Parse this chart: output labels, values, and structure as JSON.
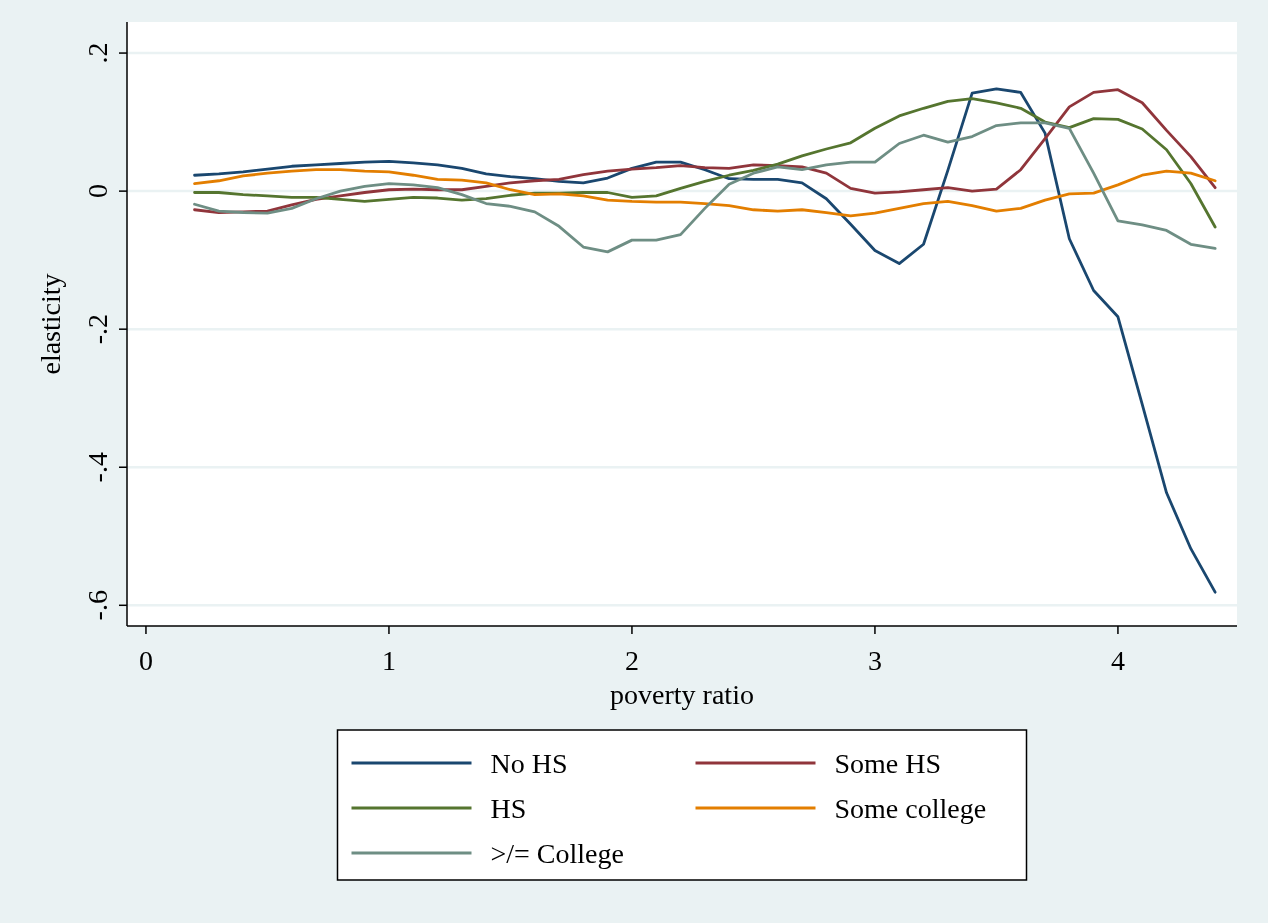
{
  "chart_data": {
    "type": "line",
    "xlabel": "poverty ratio",
    "ylabel": "elasticity",
    "x": [
      0.2,
      0.3,
      0.4,
      0.5,
      0.6,
      0.7,
      0.8,
      0.9,
      1.0,
      1.1,
      1.2,
      1.3,
      1.4,
      1.5,
      1.6,
      1.7,
      1.8,
      1.9,
      2.0,
      2.1,
      2.2,
      2.3,
      2.4,
      2.5,
      2.6,
      2.7,
      2.8,
      2.9,
      3.0,
      3.1,
      3.2,
      3.3,
      3.4,
      3.5,
      3.6,
      3.7,
      3.8,
      3.9,
      4.0,
      4.1,
      4.2,
      4.3,
      4.4
    ],
    "series": [
      {
        "name": "No HS",
        "color": "#1a476f",
        "values": [
          0.023,
          0.025,
          0.028,
          0.032,
          0.036,
          0.038,
          0.04,
          0.042,
          0.043,
          0.041,
          0.038,
          0.033,
          0.025,
          0.021,
          0.018,
          0.014,
          0.012,
          0.019,
          0.033,
          0.042,
          0.042,
          0.031,
          0.018,
          0.017,
          0.017,
          0.012,
          -0.011,
          -0.048,
          -0.086,
          -0.105,
          -0.077,
          0.03,
          0.142,
          0.148,
          0.143,
          0.084,
          -0.069,
          -0.144,
          -0.182,
          -0.309,
          -0.437,
          -0.518,
          -0.581
        ]
      },
      {
        "name": "Some HS",
        "color": "#90353b",
        "values": [
          -0.027,
          -0.031,
          -0.03,
          -0.029,
          -0.02,
          -0.012,
          -0.007,
          -0.002,
          0.002,
          0.003,
          0.002,
          0.002,
          0.007,
          0.012,
          0.015,
          0.017,
          0.024,
          0.029,
          0.032,
          0.034,
          0.037,
          0.034,
          0.033,
          0.038,
          0.037,
          0.035,
          0.026,
          0.004,
          -0.003,
          -0.001,
          0.002,
          0.005,
          0.0,
          0.003,
          0.031,
          0.076,
          0.122,
          0.143,
          0.147,
          0.128,
          0.088,
          0.05,
          0.005
        ]
      },
      {
        "name": "HS",
        "color": "#55752f",
        "values": [
          -0.002,
          -0.002,
          -0.005,
          -0.007,
          -0.009,
          -0.009,
          -0.012,
          -0.015,
          -0.012,
          -0.009,
          -0.01,
          -0.013,
          -0.011,
          -0.006,
          -0.003,
          -0.003,
          -0.002,
          -0.002,
          -0.009,
          -0.007,
          0.004,
          0.014,
          0.023,
          0.03,
          0.039,
          0.051,
          0.061,
          0.07,
          0.091,
          0.109,
          0.12,
          0.13,
          0.134,
          0.128,
          0.12,
          0.1,
          0.092,
          0.105,
          0.104,
          0.09,
          0.06,
          0.011,
          -0.052
        ]
      },
      {
        "name": "Some college",
        "color": "#e37e00",
        "values": [
          0.011,
          0.015,
          0.022,
          0.026,
          0.029,
          0.031,
          0.031,
          0.029,
          0.028,
          0.023,
          0.017,
          0.016,
          0.012,
          0.002,
          -0.005,
          -0.004,
          -0.007,
          -0.013,
          -0.015,
          -0.016,
          -0.016,
          -0.018,
          -0.021,
          -0.027,
          -0.029,
          -0.027,
          -0.031,
          -0.036,
          -0.032,
          -0.025,
          -0.018,
          -0.015,
          -0.021,
          -0.029,
          -0.025,
          -0.013,
          -0.004,
          -0.003,
          0.009,
          0.023,
          0.029,
          0.026,
          0.015
        ]
      },
      {
        "name": ">/= College",
        "color": "#6e8e84",
        "values": [
          -0.019,
          -0.029,
          -0.031,
          -0.032,
          -0.025,
          -0.011,
          0.0,
          0.007,
          0.011,
          0.009,
          0.005,
          -0.005,
          -0.018,
          -0.022,
          -0.03,
          -0.051,
          -0.081,
          -0.088,
          -0.071,
          -0.071,
          -0.063,
          -0.025,
          0.01,
          0.026,
          0.035,
          0.031,
          0.038,
          0.042,
          0.042,
          0.069,
          0.081,
          0.071,
          0.079,
          0.095,
          0.099,
          0.099,
          0.091,
          0.026,
          -0.043,
          -0.049,
          -0.057,
          -0.077,
          -0.083
        ]
      }
    ],
    "xlim": [
      -0.078,
      4.49
    ],
    "ylim": [
      -0.63,
      0.245
    ],
    "xticks": [
      0,
      1,
      2,
      3,
      4
    ],
    "yticks": [
      {
        "value": 0.2,
        "label": ".2"
      },
      0,
      {
        "value": -0.2,
        "label": "-.2"
      },
      {
        "value": -0.4,
        "label": "-.4"
      },
      {
        "value": -0.6,
        "label": "-.6"
      }
    ],
    "grid": "y",
    "legend": "bottom",
    "line_style": "solid"
  }
}
